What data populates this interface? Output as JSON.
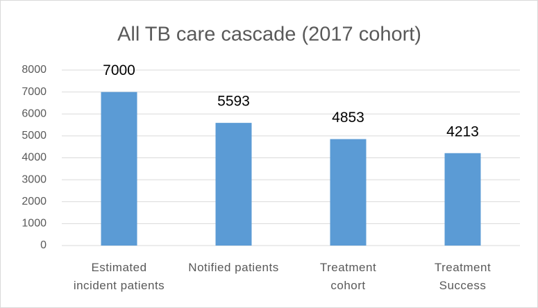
{
  "chart_data": {
    "type": "bar",
    "title": "All TB care cascade (2017 cohort)",
    "categories": [
      "Estimated\nincident patients",
      "Notified patients",
      "Treatment\ncohort",
      "Treatment\nSuccess"
    ],
    "values": [
      7000,
      5593,
      4853,
      4213
    ],
    "color": "#5b9bd5",
    "ylim": [
      0,
      8000
    ],
    "yticks": [
      0,
      1000,
      2000,
      3000,
      4000,
      5000,
      6000,
      7000,
      8000
    ],
    "grid": true
  }
}
